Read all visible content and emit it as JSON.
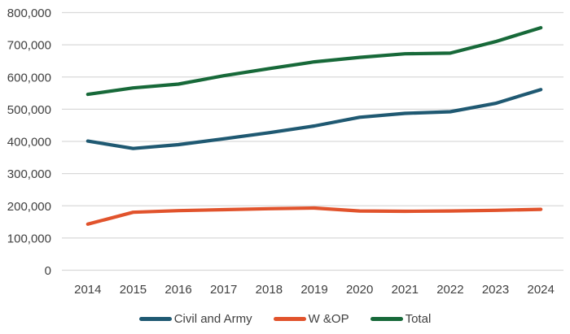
{
  "chart_data": {
    "type": "line",
    "title": "",
    "categories": [
      "2014",
      "2015",
      "2016",
      "2017",
      "2018",
      "2019",
      "2020",
      "2021",
      "2022",
      "2023",
      "2024"
    ],
    "series": [
      {
        "name": "Civil and Army",
        "color": "#1F5972",
        "values": [
          401000,
          378000,
          390000,
          408000,
          427000,
          448000,
          475000,
          487000,
          492000,
          518000,
          561000
        ]
      },
      {
        "name": "W &OP",
        "color": "#E1532C",
        "values": [
          143000,
          180000,
          185000,
          188000,
          191000,
          193000,
          184000,
          183000,
          184000,
          186000,
          189000
        ]
      },
      {
        "name": "Total",
        "color": "#176939",
        "values": [
          546000,
          566000,
          578000,
          604000,
          626000,
          647000,
          661000,
          672000,
          674000,
          710000,
          753000
        ]
      }
    ],
    "xlabel": "",
    "ylabel": "",
    "ylim": [
      0,
      800000
    ],
    "ytick_step": 100000,
    "ytick_labels": [
      "0",
      "100,000",
      "200,000",
      "300,000",
      "400,000",
      "500,000",
      "600,000",
      "700,000",
      "800,000"
    ],
    "grid": "horizontal",
    "legend_position": "bottom"
  },
  "colors": {
    "background": "#FFFFFF",
    "gridline": "#D9D9D9",
    "axis_text": "#404040"
  }
}
